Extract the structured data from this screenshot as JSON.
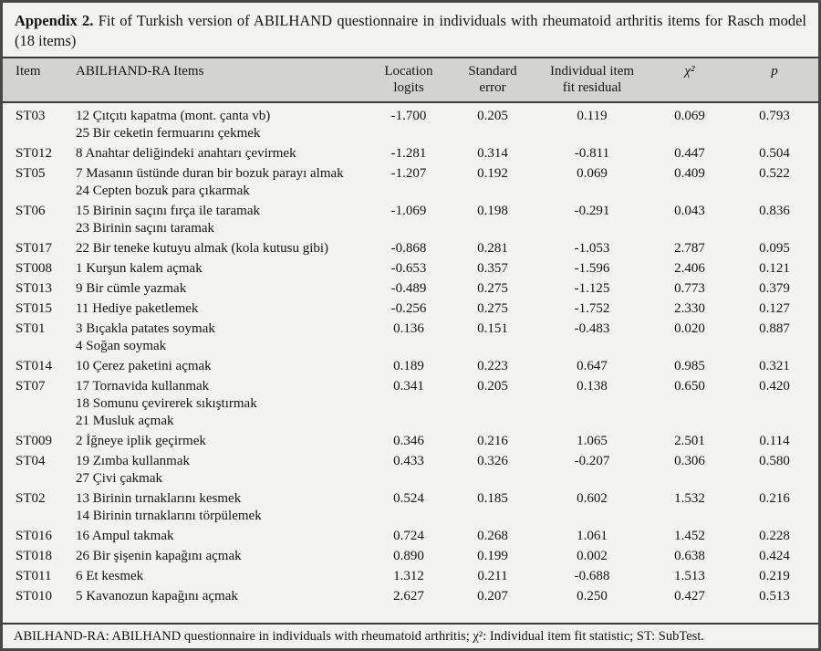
{
  "title": {
    "label": "Appendix 2.",
    "text": "Fit of Turkish version of ABILHAND questionnaire in individuals with rheumatoid arthritis items for Rasch model (18 items)"
  },
  "table": {
    "columns": {
      "item": "Item",
      "items": "ABILHAND-RA Items",
      "location": "Location\nlogits",
      "standard_error": "Standard\nerror",
      "fit_residual": "Individual item\nfit residual",
      "chi_square": "χ²",
      "p": "p"
    },
    "rows": [
      {
        "id": "ST03",
        "items": "12 Çıtçıtı kapatma (mont. çanta vb)\n25 Bir ceketin fermuarını çekmek",
        "location": "-1.700",
        "se": "0.205",
        "fit": "0.119",
        "chi2": "0.069",
        "p": "0.793"
      },
      {
        "id": "ST012",
        "items": "8 Anahtar deliğindeki anahtarı çevirmek",
        "location": "-1.281",
        "se": "0.314",
        "fit": "-0.811",
        "chi2": "0.447",
        "p": "0.504"
      },
      {
        "id": "ST05",
        "items": "7 Masanın üstünde duran bir bozuk parayı almak\n24 Cepten bozuk para çıkarmak",
        "location": "-1.207",
        "se": "0.192",
        "fit": "0.069",
        "chi2": "0.409",
        "p": "0.522"
      },
      {
        "id": "ST06",
        "items": "15 Birinin saçını fırça ile taramak\n23 Birinin saçını taramak",
        "location": "-1.069",
        "se": "0.198",
        "fit": "-0.291",
        "chi2": "0.043",
        "p": "0.836"
      },
      {
        "id": "ST017",
        "items": "22 Bir teneke kutuyu almak (kola kutusu gibi)",
        "location": "-0.868",
        "se": "0.281",
        "fit": "-1.053",
        "chi2": "2.787",
        "p": "0.095"
      },
      {
        "id": "ST008",
        "items": "1 Kurşun kalem açmak",
        "location": "-0.653",
        "se": "0.357",
        "fit": "-1.596",
        "chi2": "2.406",
        "p": "0.121"
      },
      {
        "id": "ST013",
        "items": "9 Bir cümle yazmak",
        "location": "-0.489",
        "se": "0.275",
        "fit": "-1.125",
        "chi2": "0.773",
        "p": "0.379"
      },
      {
        "id": "ST015",
        "items": "11 Hediye paketlemek",
        "location": "-0.256",
        "se": "0.275",
        "fit": "-1.752",
        "chi2": "2.330",
        "p": "0.127"
      },
      {
        "id": "ST01",
        "items": "3 Bıçakla patates soymak\n4 Soğan soymak",
        "location": "0.136",
        "se": "0.151",
        "fit": "-0.483",
        "chi2": "0.020",
        "p": "0.887"
      },
      {
        "id": "ST014",
        "items": "10 Çerez paketini açmak",
        "location": "0.189",
        "se": "0.223",
        "fit": "0.647",
        "chi2": "0.985",
        "p": "0.321"
      },
      {
        "id": "ST07",
        "items": "17 Tornavida kullanmak\n18 Somunu çevirerek sıkıştırmak\n21 Musluk açmak",
        "location": "0.341",
        "se": "0.205",
        "fit": "0.138",
        "chi2": "0.650",
        "p": "0.420"
      },
      {
        "id": "ST009",
        "items": "2 İğneye iplik geçirmek",
        "location": "0.346",
        "se": "0.216",
        "fit": "1.065",
        "chi2": "2.501",
        "p": "0.114"
      },
      {
        "id": "ST04",
        "items": "19 Zımba kullanmak\n27 Çivi çakmak",
        "location": "0.433",
        "se": "0.326",
        "fit": "-0.207",
        "chi2": "0.306",
        "p": "0.580"
      },
      {
        "id": "ST02",
        "items": "13 Birinin tırnaklarını kesmek\n14 Birinin tırnaklarını törpülemek",
        "location": "0.524",
        "se": "0.185",
        "fit": "0.602",
        "chi2": "1.532",
        "p": "0.216"
      },
      {
        "id": "ST016",
        "items": "16 Ampul takmak",
        "location": "0.724",
        "se": "0.268",
        "fit": "1.061",
        "chi2": "1.452",
        "p": "0.228"
      },
      {
        "id": "ST018",
        "items": "26 Bir şişenin kapağını açmak",
        "location": "0.890",
        "se": "0.199",
        "fit": "0.002",
        "chi2": "0.638",
        "p": "0.424"
      },
      {
        "id": "ST011",
        "items": "6 Et kesmek",
        "location": "1.312",
        "se": "0.211",
        "fit": "-0.688",
        "chi2": "1.513",
        "p": "0.219"
      },
      {
        "id": "ST010",
        "items": "5 Kavanozun kapağını açmak",
        "location": "2.627",
        "se": "0.207",
        "fit": "0.250",
        "chi2": "0.427",
        "p": "0.513"
      }
    ]
  },
  "footnote": "ABILHAND-RA: ABILHAND questionnaire in individuals with rheumatoid arthritis; χ²: Individual item fit statistic; ST: SubTest.",
  "colors": {
    "page_bg": "#f3f3f1",
    "header_bg": "#d3d3d1",
    "rule": "#3a3a3a",
    "frame_border": "#474747",
    "text": "#141414"
  }
}
